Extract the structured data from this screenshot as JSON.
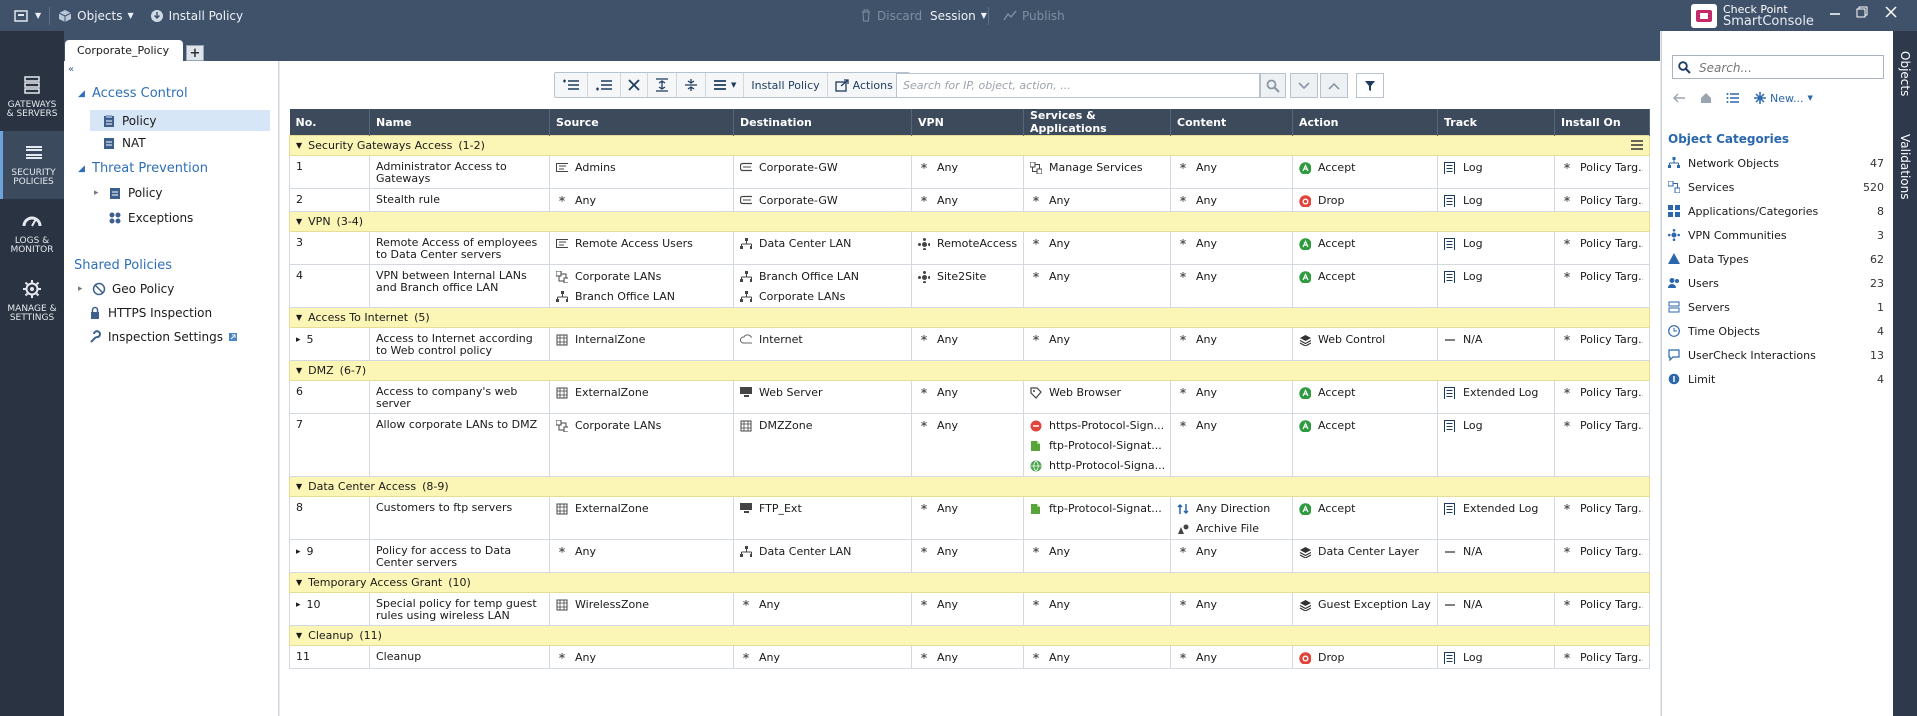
{
  "window": {
    "brand_line1": "Check Point",
    "brand_line2": "SmartConsole"
  },
  "topbar": {
    "objects_label": "Objects",
    "install_policy_label": "Install Policy",
    "discard_label": "Discard",
    "session_label": "Session",
    "publish_label": "Publish"
  },
  "leftnav": [
    {
      "label1": "GATEWAYS",
      "label2": "& SERVERS",
      "icon": "gateways-icon"
    },
    {
      "label1": "SECURITY",
      "label2": "POLICIES",
      "icon": "security-policies-icon"
    },
    {
      "label1": "LOGS &",
      "label2": "MONITOR",
      "icon": "logs-monitor-icon"
    },
    {
      "label1": "MANAGE &",
      "label2": "SETTINGS",
      "icon": "manage-settings-icon"
    }
  ],
  "tabs": {
    "active": "Corporate_Policy",
    "add": "+"
  },
  "tree": {
    "access_control": "Access Control",
    "ac_policy": "Policy",
    "nat": "NAT",
    "threat_prevention": "Threat Prevention",
    "tp_policy": "Policy",
    "exceptions": "Exceptions",
    "shared_policies": "Shared Policies",
    "geo_policy": "Geo Policy",
    "https_inspection": "HTTPS Inspection",
    "inspection_settings": "Inspection Settings"
  },
  "toolbar": {
    "install_policy": "Install Policy",
    "actions": "Actions",
    "search_placeholder": "Search for IP, object, action, ..."
  },
  "columns": [
    "No.",
    "Name",
    "Source",
    "Destination",
    "VPN",
    "Services & Applications",
    "Content",
    "Action",
    "Track",
    "Install On"
  ],
  "sections": [
    {
      "title": "Security Gateways Access",
      "range": "(1-2)",
      "rules": [
        {
          "no": "1",
          "name": "Administrator Access to Gateways",
          "source": [
            "Admins"
          ],
          "destination": [
            "Corporate-GW"
          ],
          "vpn": [
            "Any"
          ],
          "services": [
            "Manage Services"
          ],
          "content": [
            "Any"
          ],
          "action": "Accept",
          "track": "Log",
          "install": "Policy Targ..."
        },
        {
          "no": "2",
          "name": "Stealth rule",
          "source": [
            "Any"
          ],
          "destination": [
            "Corporate-GW"
          ],
          "vpn": [
            "Any"
          ],
          "services": [
            "Any"
          ],
          "content": [
            "Any"
          ],
          "action": "Drop",
          "track": "Log",
          "install": "Policy Targ..."
        }
      ]
    },
    {
      "title": "VPN",
      "range": "(3-4)",
      "rules": [
        {
          "no": "3",
          "name": "Remote Access of employees to Data Center servers",
          "source": [
            "Remote Access Users"
          ],
          "destination": [
            "Data Center LAN"
          ],
          "vpn": [
            "RemoteAccess"
          ],
          "services": [
            "Any"
          ],
          "content": [
            "Any"
          ],
          "action": "Accept",
          "track": "Log",
          "install": "Policy Targ..."
        },
        {
          "no": "4",
          "name": "VPN between Internal LANs and Branch office LAN",
          "source": [
            "Corporate LANs",
            "Branch Office LAN"
          ],
          "destination": [
            "Branch Office LAN",
            "Corporate LANs"
          ],
          "vpn": [
            "Site2Site"
          ],
          "services": [
            "Any"
          ],
          "content": [
            "Any"
          ],
          "action": "Accept",
          "track": "Log",
          "install": "Policy Targ..."
        }
      ]
    },
    {
      "title": "Access To Internet",
      "range": "(5)",
      "rules": [
        {
          "no": "5",
          "name": "Access to Internet according to Web control policy",
          "source": [
            "InternalZone"
          ],
          "destination": [
            "Internet"
          ],
          "vpn": [
            "Any"
          ],
          "services": [
            "Any"
          ],
          "content": [
            "Any"
          ],
          "action": "Web Control",
          "track": "N/A",
          "install": "Policy Targ..."
        }
      ]
    },
    {
      "title": "DMZ",
      "range": "(6-7)",
      "rules": [
        {
          "no": "6",
          "name": "Access to company's web server",
          "source": [
            "ExternalZone"
          ],
          "destination": [
            "Web Server"
          ],
          "vpn": [
            "Any"
          ],
          "services": [
            "Web Browser"
          ],
          "content": [
            "Any"
          ],
          "action": "Accept",
          "track": "Extended Log",
          "install": "Policy Targ..."
        },
        {
          "no": "7",
          "name": "Allow corporate LANs to DMZ",
          "source": [
            "Corporate LANs"
          ],
          "destination": [
            "DMZZone"
          ],
          "vpn": [
            "Any"
          ],
          "services": [
            "https-Protocol-Sign...",
            "ftp-Protocol-Signat...",
            "http-Protocol-Signa..."
          ],
          "content": [
            "Any"
          ],
          "action": "Accept",
          "track": "Log",
          "install": "Policy Targ..."
        }
      ]
    },
    {
      "title": "Data Center Access",
      "range": "(8-9)",
      "rules": [
        {
          "no": "8",
          "name": "Customers to ftp servers",
          "source": [
            "ExternalZone"
          ],
          "destination": [
            "FTP_Ext"
          ],
          "vpn": [
            "Any"
          ],
          "services": [
            "ftp-Protocol-Signat..."
          ],
          "content": [
            "Any Direction",
            "Archive File"
          ],
          "action": "Accept",
          "track": "Extended Log",
          "install": "Policy Targ..."
        },
        {
          "no": "9",
          "name": "Policy for access to Data Center servers",
          "source": [
            "Any"
          ],
          "destination": [
            "Data Center LAN"
          ],
          "vpn": [
            "Any"
          ],
          "services": [
            "Any"
          ],
          "content": [
            "Any"
          ],
          "action": "Data Center Layer",
          "track": "N/A",
          "install": "Policy Targ..."
        }
      ]
    },
    {
      "title": "Temporary Access Grant",
      "range": "(10)",
      "rules": [
        {
          "no": "10",
          "name": "Special policy for temp guest rules using wireless LAN",
          "source": [
            "WirelessZone"
          ],
          "destination": [
            "Any"
          ],
          "vpn": [
            "Any"
          ],
          "services": [
            "Any"
          ],
          "content": [
            "Any"
          ],
          "action": "Guest Exception Laye",
          "track": "N/A",
          "install": "Policy Targ..."
        }
      ]
    },
    {
      "title": "Cleanup",
      "range": "(11)",
      "rules": [
        {
          "no": "11",
          "name": "Cleanup",
          "source": [
            "Any"
          ],
          "destination": [
            "Any"
          ],
          "vpn": [
            "Any"
          ],
          "services": [
            "Any"
          ],
          "content": [
            "Any"
          ],
          "action": "Drop",
          "track": "Log",
          "install": "Policy Targ..."
        }
      ]
    }
  ],
  "rightpanel": {
    "search_placeholder": "Search...",
    "new_label": "New...",
    "title": "Object Categories",
    "categories": [
      {
        "name": "Network Objects",
        "count": "47"
      },
      {
        "name": "Services",
        "count": "520"
      },
      {
        "name": "Applications/Categories",
        "count": "8"
      },
      {
        "name": "VPN Communities",
        "count": "3"
      },
      {
        "name": "Data Types",
        "count": "62"
      },
      {
        "name": "Users",
        "count": "23"
      },
      {
        "name": "Servers",
        "count": "1"
      },
      {
        "name": "Time Objects",
        "count": "4"
      },
      {
        "name": "UserCheck Interactions",
        "count": "13"
      },
      {
        "name": "Limit",
        "count": "4"
      }
    ]
  },
  "vtabs": {
    "objects": "Objects",
    "validations": "Validations"
  },
  "colors": {
    "topbar": "#40526a",
    "leftnav": "#2a3341",
    "section": "#fbf5b6",
    "header": "#3c4a5c",
    "accent": "#2f6fb8",
    "accept": "#2e9c3e",
    "drop": "#e0443a"
  }
}
